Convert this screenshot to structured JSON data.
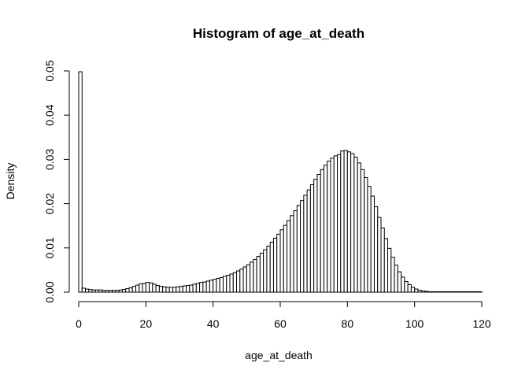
{
  "chart_data": {
    "type": "bar",
    "title": "Histogram of age_at_death",
    "xlabel": "age_at_death",
    "ylabel": "Density",
    "xlim": [
      0,
      120
    ],
    "ylim": [
      0,
      0.05
    ],
    "xticks": [
      "0",
      "20",
      "40",
      "60",
      "80",
      "100",
      "120"
    ],
    "yticks": [
      "0.00",
      "0.01",
      "0.02",
      "0.03",
      "0.04",
      "0.05"
    ],
    "grid": false,
    "bin_width": 1,
    "bin_start": 0,
    "values": [
      0.0498,
      0.0009,
      0.0007,
      0.0006,
      0.0005,
      0.0005,
      0.0005,
      0.0004,
      0.0004,
      0.0004,
      0.0004,
      0.0004,
      0.0005,
      0.0006,
      0.0008,
      0.001,
      0.0013,
      0.0016,
      0.0019,
      0.002,
      0.0022,
      0.0021,
      0.0018,
      0.0015,
      0.0013,
      0.0012,
      0.0011,
      0.0011,
      0.0011,
      0.0012,
      0.0013,
      0.0014,
      0.0015,
      0.0016,
      0.0018,
      0.002,
      0.0022,
      0.0023,
      0.0025,
      0.0027,
      0.0029,
      0.0031,
      0.0033,
      0.0036,
      0.0038,
      0.0041,
      0.0044,
      0.0048,
      0.0052,
      0.0057,
      0.0062,
      0.0068,
      0.0074,
      0.0081,
      0.0088,
      0.0096,
      0.0104,
      0.0113,
      0.0122,
      0.0131,
      0.0141,
      0.0151,
      0.0162,
      0.0173,
      0.0184,
      0.0196,
      0.0207,
      0.0219,
      0.0231,
      0.0243,
      0.0255,
      0.0266,
      0.0277,
      0.0287,
      0.0296,
      0.0303,
      0.0308,
      0.0311,
      0.0319,
      0.032,
      0.0317,
      0.0313,
      0.0305,
      0.0292,
      0.0277,
      0.0259,
      0.0239,
      0.0217,
      0.0193,
      0.0169,
      0.0145,
      0.0121,
      0.0099,
      0.0079,
      0.0061,
      0.0046,
      0.0034,
      0.0024,
      0.0017,
      0.0011,
      0.0007,
      0.0004,
      0.0003,
      0.0002,
      0.0001,
      0.0001,
      0.0001,
      0.0001,
      0.0001,
      0.0001,
      0.0001,
      0.0001,
      0.0001,
      0.0001,
      0.0001,
      0.0001,
      0.0001,
      0.0001,
      0.0001,
      0.0001
    ]
  }
}
